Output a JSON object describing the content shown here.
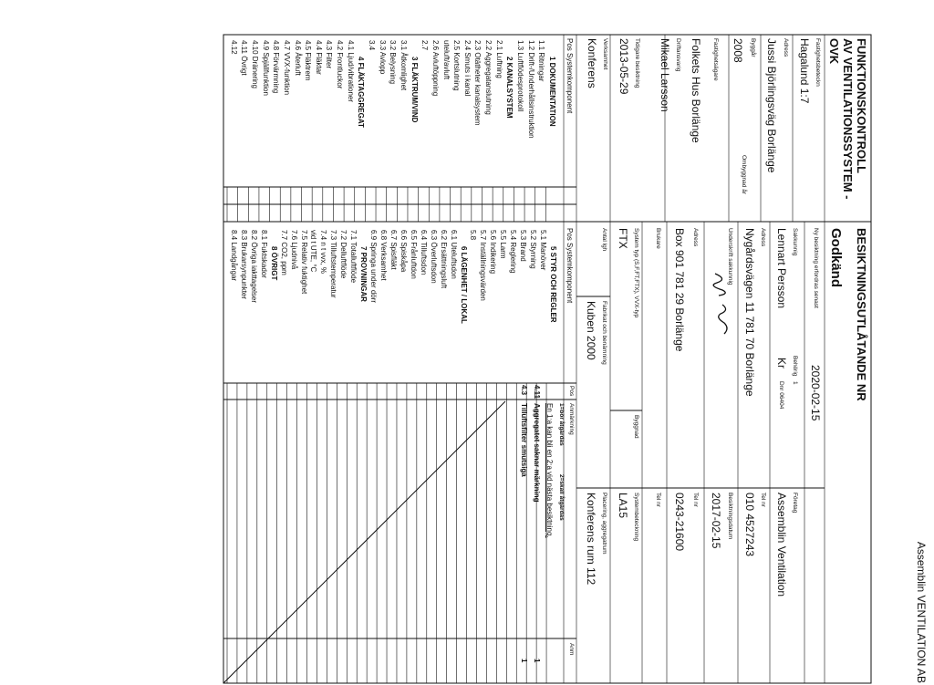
{
  "header": {
    "company": "Assemblin VENTILATION AB"
  },
  "form": {
    "title": [
      "FUNKTIONSKONTROLL",
      "AV VENTILATIONSSYSTEM -",
      "OVK"
    ],
    "report_title": "BESIKTNINGSUTLÅTANDE NR",
    "status": "Godkänd",
    "property": {
      "designation_label": "Fastighetsbeteckn",
      "designation": "Hagalund 1:7",
      "address_label": "Adress",
      "address": "Jussi Björlingsväg Borlänge",
      "year_label": "Byggår",
      "year": "2008",
      "rebuild_label": "Ombyggnad år",
      "owner_label": "Fastighetsägare",
      "owner": "Folkets Hus Borlänge",
      "operator_label": "Driftansvarig",
      "operator": "Mikael Larsson",
      "previous_label": "Tidigare besiktning",
      "previous": "2013-05-29",
      "activity_label": "Verksamhet",
      "activity": "Konferens"
    },
    "inspection": {
      "next_label": "Ny besiktning erfordras senast",
      "next": "2020-02-15",
      "expert_label": "Sakkunnig",
      "authorized_label": "Behörig",
      "authorized": "1",
      "expert": "Lennart Persson",
      "kr": "Kr",
      "dnr": "Dnr 06404",
      "company_label": "Företag",
      "company": "Assemblin Ventilation",
      "address_label": "Adress",
      "address": "Nygårdsvägen 11 781 70 Borlänge",
      "phone_label": "Tel nr",
      "phone": "010 4527243",
      "signature_label": "Underskrift sakkunnig",
      "date_label": "Besiktningsdatum",
      "date": "2017-02-15",
      "owner_address_label": "Adress",
      "owner_address": "Box 901 781 29 Borlänge",
      "owner_phone_label": "Tel nr",
      "owner_phone": "0243-21600",
      "user_label": "Brukare",
      "user_phone_label": "Tel nr"
    },
    "system": {
      "type_label": "System typ (S,F,FT,FTX), VVX-typ",
      "type": "FTX",
      "building_label": "Byggnad",
      "designation_label": "Systembeteckning",
      "designation": "LA15",
      "units_label": "Antal lgh",
      "make_label": "Fabrikat och benämning",
      "make": "Kuben 2000",
      "placement_label": "Placering, aggregatrum",
      "placement": "Konferens rum 112"
    },
    "remarks": {
      "pos_label": "Pos",
      "remark_label": "Anmärkning",
      "anm_label": "Anm",
      "legend_1": "1=bör åtgärdas",
      "legend_2": "2=skall åtgärdas",
      "note": "En 1:a kan bli en 2:a vid nästa besiktning.",
      "rows": [
        {
          "pos": "4.11",
          "text": "Aggregatet saknar märkning",
          "anm": "1"
        },
        {
          "pos": "4.3",
          "text": "Tilluftsfilter smutsiga",
          "anm": "1"
        }
      ]
    },
    "components": {
      "left_header": "Pos Systemkomponent",
      "right_header": "Pos Systemkomponent",
      "left": [
        "1 DOKUMENTATION",
        "1.1 Ritningar",
        "1.2 Drift-/Underhållsinstruktion",
        "1.3 Luftflödesprotokoll",
        "2 KANALSYSTEM",
        "2.1 Luftning",
        "2.2 Aggregatanslutning",
        "2.3 Otätheter kanalsystem",
        "2.4 Smuts i kanal",
        "2.5 Kortslutning",
        "uteluft/avluft",
        "2.6 Avluftöppning",
        "2.7",
        "3 FLÄKTRUM/VIND",
        "3.1 Åtkomlighet",
        "3.2 Belysning",
        "3.3 Avlopp",
        "3.4",
        "4 FLÄKTAGGREGAT",
        "4.1 Ljud/vibrationer",
        "4.2 Frontluckor",
        "4.3 Filter",
        "4.4 Fläktar",
        "4.5 Fläktrem",
        "4.6 Återluft",
        "4.7 VVX-funktion",
        "4.8 Förvärmning",
        "4.9 Spjällfunktion",
        "4.10 Dränering",
        "4.11 Övrigt",
        "4.12"
      ],
      "right": [
        "5 STYR OCH REGLER",
        "5.1 Manöver",
        "5.2 Styrning",
        "5.3 Brand",
        "5.4 Reglering",
        "5.5 Larm",
        "5.6 Indikering",
        "5.7 Inställningsvärden",
        "5.8",
        "6 LÄGENHET / LOKAL",
        "6.1 Uteluftsdon",
        "6.2 Ersättningsluft",
        "6.3 Överluftsdon",
        "6.4 Tilluftsdon",
        "6.5 Frånluftdon",
        "6.6 Spiskåpa",
        "6.7 Spisfläkt",
        "6.8 Verksamhet",
        "6.9 Springa under dörr",
        "7 PROVNINGAR",
        "7.1 Totalluftflöde",
        "7.2 Delluftflöde",
        "7.3 Tilluftstemperatur",
        "7.4 n t vvx, %",
        "vid t UTE, °C",
        "7.5 Relativ fuktighet",
        "7.6 Ljudnivå",
        "7.7 CO2, ppm",
        "8 ÖVRIGT",
        "8.1 Fuktskador",
        "8.2 Övriga iakttagelser",
        "8.3 Brukarsynpunkter",
        "8.4 Landgångar"
      ]
    }
  }
}
